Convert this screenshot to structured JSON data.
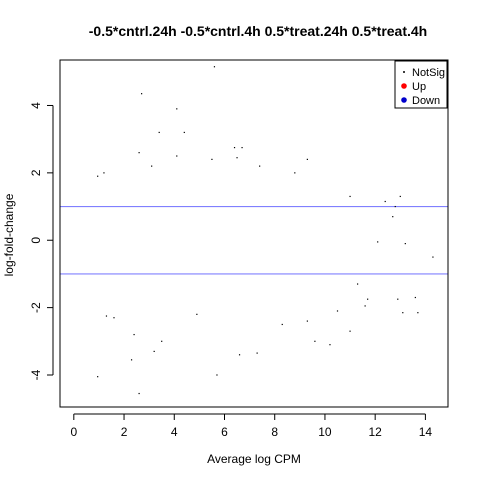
{
  "chart_data": {
    "type": "scatter",
    "title": "-0.5*cntrl.24h -0.5*cntrl.4h 0.5*treat.24h 0.5*treat.4h",
    "xlabel": "Average log CPM",
    "ylabel": "log-fold-change",
    "xlim": [
      -0.55,
      14.9
    ],
    "ylim": [
      -4.95,
      5.35
    ],
    "xticks": [
      0,
      2,
      4,
      6,
      8,
      10,
      12,
      14
    ],
    "yticks": [
      -4,
      -2,
      0,
      2,
      4
    ],
    "hlines": [
      1,
      -1
    ],
    "hline_color": "#8080ff",
    "legend": {
      "position": "top-right",
      "entries": [
        {
          "label": "NotSig",
          "color": "#000000",
          "symbol": "small-dot"
        },
        {
          "label": "Up",
          "color": "#ff0000",
          "symbol": "dot"
        },
        {
          "label": "Down",
          "color": "#0000cc",
          "symbol": "dot"
        }
      ]
    },
    "series": [
      {
        "name": "NotSig",
        "color": "#000000",
        "points": [
          [
            5.6,
            5.15
          ],
          [
            2.7,
            4.35
          ],
          [
            4.1,
            3.9
          ],
          [
            4.4,
            3.2
          ],
          [
            3.4,
            3.2
          ],
          [
            6.4,
            2.75
          ],
          [
            6.7,
            2.75
          ],
          [
            4.1,
            2.5
          ],
          [
            2.6,
            2.6
          ],
          [
            6.5,
            2.45
          ],
          [
            9.3,
            2.4
          ],
          [
            5.5,
            2.4
          ],
          [
            7.4,
            2.2
          ],
          [
            3.1,
            2.2
          ],
          [
            8.8,
            2.0
          ],
          [
            1.2,
            2.0
          ],
          [
            0.95,
            1.9
          ],
          [
            13.0,
            1.3
          ],
          [
            11.0,
            1.3
          ],
          [
            12.4,
            1.15
          ],
          [
            12.8,
            1.0
          ],
          [
            12.7,
            0.7
          ],
          [
            0.95,
            -4.05
          ],
          [
            2.6,
            -4.55
          ],
          [
            5.7,
            -4.0
          ],
          [
            2.3,
            -3.55
          ],
          [
            3.2,
            -3.3
          ],
          [
            6.6,
            -3.4
          ],
          [
            7.3,
            -3.35
          ],
          [
            9.6,
            -3.0
          ],
          [
            10.2,
            -3.1
          ],
          [
            3.5,
            -3.0
          ],
          [
            2.4,
            -2.8
          ],
          [
            11.0,
            -2.7
          ],
          [
            13.1,
            -2.15
          ],
          [
            13.7,
            -2.15
          ],
          [
            12.9,
            -1.75
          ],
          [
            13.6,
            -1.7
          ],
          [
            11.7,
            -1.75
          ],
          [
            11.6,
            -1.95
          ],
          [
            14.3,
            -0.5
          ],
          [
            13.2,
            -0.1
          ],
          [
            12.1,
            -0.05
          ],
          [
            1.3,
            -2.25
          ],
          [
            1.6,
            -2.3
          ],
          [
            4.9,
            -2.2
          ],
          [
            9.3,
            -2.4
          ],
          [
            10.5,
            -2.1
          ],
          [
            8.3,
            -2.5
          ],
          [
            11.3,
            -1.3
          ]
        ]
      },
      {
        "name": "Up",
        "color": "#ff0000",
        "points": []
      },
      {
        "name": "Down",
        "color": "#0000cc",
        "points": []
      }
    ]
  }
}
